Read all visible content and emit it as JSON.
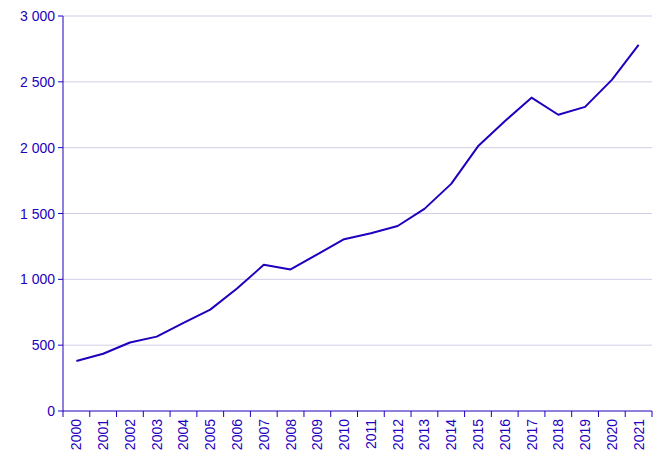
{
  "chart_data": {
    "type": "line",
    "categories": [
      "2000",
      "2001",
      "2002",
      "2003",
      "2004",
      "2005",
      "2006",
      "2007",
      "2008",
      "2009",
      "2010",
      "2011",
      "2012",
      "2013",
      "2014",
      "2015",
      "2016",
      "2017",
      "2018",
      "2019",
      "2020",
      "2021"
    ],
    "values": [
      380,
      435,
      520,
      565,
      670,
      770,
      930,
      1110,
      1075,
      1190,
      1305,
      1350,
      1405,
      1535,
      1725,
      2010,
      2200,
      2380,
      2250,
      2310,
      2515,
      2780
    ],
    "color": "#1e00be",
    "ylim": [
      0,
      3000
    ],
    "yticks": [
      0,
      500,
      {
        "value": 1000,
        "label": "1 000"
      },
      {
        "value": 1500,
        "label": "1 500"
      },
      {
        "value": 2000,
        "label": "2 000"
      },
      {
        "value": 2500,
        "label": "2 500"
      },
      {
        "value": 3000,
        "label": "3 000"
      }
    ],
    "grid": true
  }
}
